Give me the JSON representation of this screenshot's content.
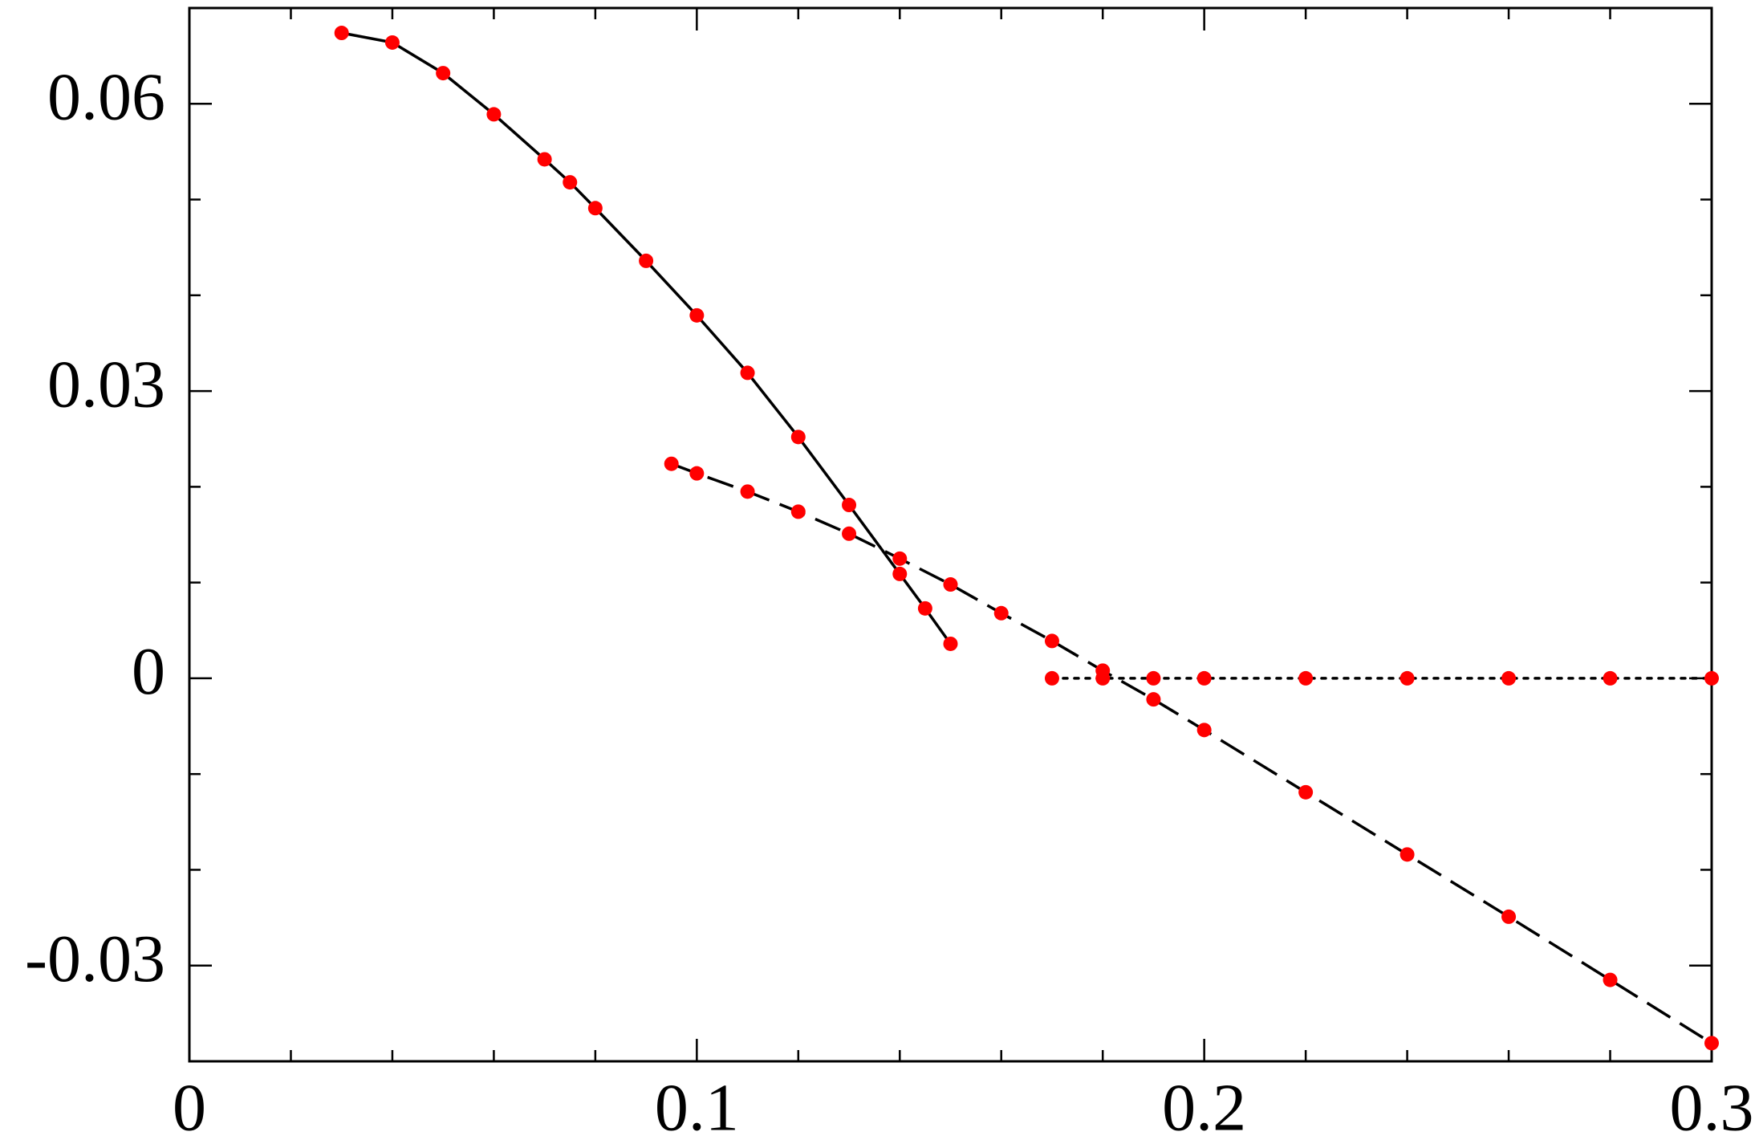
{
  "chart_data": {
    "type": "line",
    "xlim": [
      0,
      0.3
    ],
    "ylim": [
      -0.04,
      0.07
    ],
    "xticks": [
      0,
      0.1,
      0.2,
      0.3
    ],
    "yticks": [
      -0.03,
      0,
      0.03,
      0.06
    ],
    "xminorticks": [
      0.02,
      0.04,
      0.06,
      0.08,
      0.12,
      0.14,
      0.16,
      0.18,
      0.22,
      0.24,
      0.26,
      0.28
    ],
    "yminorticks": [
      -0.02,
      -0.01,
      0.01,
      0.02,
      0.04,
      0.05
    ],
    "marker_color": "#ff0000",
    "series": [
      {
        "color": "#000000",
        "linestyle": "solid",
        "x": [
          0.03,
          0.04,
          0.05,
          0.06,
          0.07,
          0.075,
          0.08,
          0.09,
          0.1,
          0.11,
          0.12,
          0.13,
          0.14,
          0.145,
          0.15
        ],
        "values": [
          0.0674,
          0.0664,
          0.0632,
          0.0589,
          0.0542,
          0.0518,
          0.0491,
          0.0436,
          0.0379,
          0.0319,
          0.0252,
          0.0181,
          0.0109,
          0.0073,
          0.0036
        ]
      },
      {
        "color": "#000000",
        "linestyle": "dashed",
        "x": [
          0.095,
          0.1,
          0.11,
          0.12,
          0.13,
          0.14,
          0.15,
          0.16,
          0.17,
          0.18,
          0.19,
          0.2,
          0.22,
          0.24,
          0.26,
          0.28,
          0.3
        ],
        "values": [
          0.0224,
          0.0214,
          0.0195,
          0.0174,
          0.0151,
          0.0125,
          0.0098,
          0.0068,
          0.0039,
          0.0008,
          -0.0022,
          -0.0054,
          -0.0119,
          -0.0184,
          -0.0249,
          -0.0315,
          -0.0381
        ]
      },
      {
        "color": "#000000",
        "linestyle": "dotted",
        "x": [
          0.17,
          0.18,
          0.19,
          0.2,
          0.22,
          0.24,
          0.26,
          0.28,
          0.3
        ],
        "values": [
          0,
          0,
          0,
          0,
          0,
          0,
          0,
          0,
          0
        ]
      }
    ]
  }
}
